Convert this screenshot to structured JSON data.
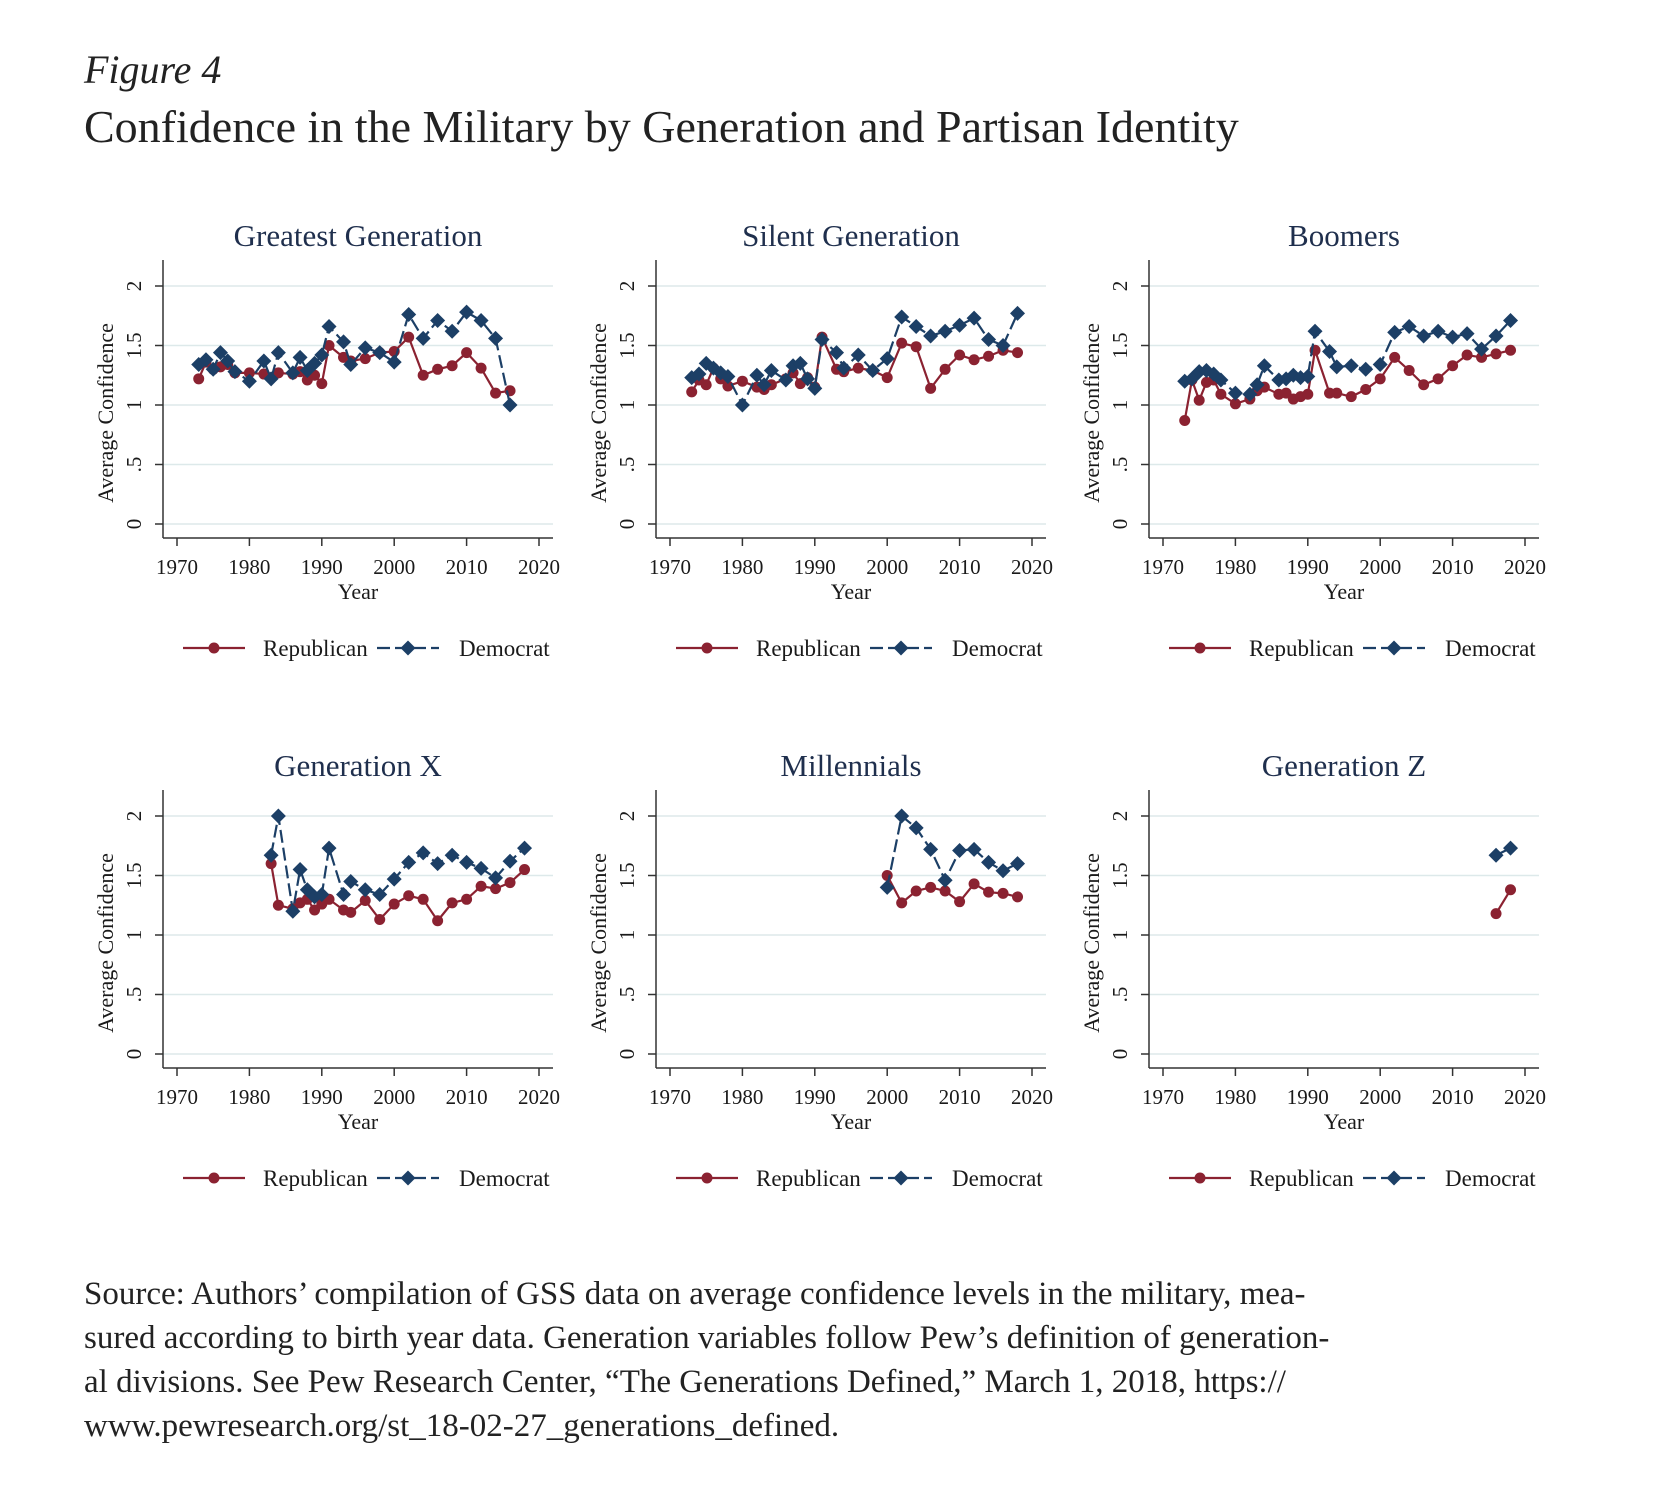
{
  "figure_label": "Figure 4",
  "figure_title": "Confidence in the Military by Generation and Partisan Identity",
  "source_text": "Source: Authors’ compilation of GSS data on average confidence levels in the military, mea-\nsured according to birth year data. Generation variables follow Pew’s definition of generation-\nal divisions. See Pew Research Center, “The Generations Defined,” March 1, 2018, https://\nwww.pewresearch.org/st_18-02-27_generations_defined.",
  "colors": {
    "republican": "#8b2231",
    "democrat": "#1c3f66",
    "grid": "#dde9ea",
    "axis": "#333333"
  },
  "chart_data": [
    {
      "type": "line",
      "title": "Greatest Generation",
      "xlabel": "Year",
      "ylabel": "Average Confidence",
      "xlim": [
        1970,
        2020
      ],
      "ylim": [
        0,
        2
      ],
      "xticks": [
        "1970",
        "1980",
        "1990",
        "2000",
        "2010",
        "2020"
      ],
      "yticks": [
        "0",
        ".5",
        "1",
        "1.5",
        "2"
      ],
      "grid": true,
      "legend": "bottom",
      "series": [
        {
          "name": "Republican",
          "x": [
            1973,
            1974,
            1975,
            1976,
            1977,
            1978,
            1980,
            1982,
            1983,
            1984,
            1986,
            1987,
            1988,
            1989,
            1990,
            1991,
            1993,
            1994,
            1996,
            1998,
            2000,
            2002,
            2004,
            2006,
            2008,
            2010,
            2012,
            2014,
            2016
          ],
          "y": [
            1.22,
            1.36,
            1.3,
            1.32,
            1.34,
            1.27,
            1.27,
            1.26,
            1.23,
            1.27,
            1.26,
            1.28,
            1.21,
            1.25,
            1.18,
            1.5,
            1.4,
            1.37,
            1.39,
            1.44,
            1.45,
            1.57,
            1.25,
            1.3,
            1.33,
            1.44,
            1.31,
            1.1,
            1.12
          ]
        },
        {
          "name": "Democrat",
          "x": [
            1973,
            1974,
            1975,
            1976,
            1977,
            1978,
            1980,
            1982,
            1983,
            1984,
            1986,
            1987,
            1988,
            1989,
            1990,
            1991,
            1993,
            1994,
            1996,
            1998,
            2000,
            2002,
            2004,
            2006,
            2008,
            2010,
            2012,
            2014,
            2016
          ],
          "y": [
            1.34,
            1.38,
            1.3,
            1.44,
            1.37,
            1.28,
            1.2,
            1.37,
            1.22,
            1.44,
            1.27,
            1.4,
            1.29,
            1.35,
            1.42,
            1.66,
            1.53,
            1.34,
            1.48,
            1.44,
            1.36,
            1.76,
            1.56,
            1.71,
            1.62,
            1.78,
            1.71,
            1.56,
            1.0
          ]
        }
      ]
    },
    {
      "type": "line",
      "title": "Silent Generation",
      "xlabel": "Year",
      "ylabel": "Average Confidence",
      "xlim": [
        1970,
        2020
      ],
      "ylim": [
        0,
        2
      ],
      "xticks": [
        "1970",
        "1980",
        "1990",
        "2000",
        "2010",
        "2020"
      ],
      "yticks": [
        "0",
        ".5",
        "1",
        "1.5",
        "2"
      ],
      "grid": true,
      "legend": "bottom",
      "series": [
        {
          "name": "Republican",
          "x": [
            1973,
            1974,
            1975,
            1976,
            1977,
            1978,
            1980,
            1982,
            1983,
            1984,
            1986,
            1987,
            1988,
            1989,
            1990,
            1991,
            1993,
            1994,
            1996,
            1998,
            2000,
            2002,
            2004,
            2006,
            2008,
            2010,
            2012,
            2014,
            2016,
            2018
          ],
          "y": [
            1.11,
            1.21,
            1.17,
            1.31,
            1.22,
            1.16,
            1.2,
            1.15,
            1.13,
            1.17,
            1.22,
            1.27,
            1.18,
            1.23,
            1.15,
            1.57,
            1.3,
            1.28,
            1.31,
            1.29,
            1.23,
            1.52,
            1.49,
            1.14,
            1.3,
            1.42,
            1.38,
            1.41,
            1.46,
            1.44
          ]
        },
        {
          "name": "Democrat",
          "x": [
            1973,
            1974,
            1975,
            1976,
            1977,
            1978,
            1980,
            1982,
            1983,
            1984,
            1986,
            1987,
            1988,
            1989,
            1990,
            1991,
            1993,
            1994,
            1996,
            1998,
            2000,
            2002,
            2004,
            2006,
            2008,
            2010,
            2012,
            2014,
            2016,
            2018
          ],
          "y": [
            1.23,
            1.26,
            1.35,
            1.31,
            1.27,
            1.24,
            1.0,
            1.25,
            1.17,
            1.29,
            1.21,
            1.33,
            1.35,
            1.22,
            1.14,
            1.55,
            1.44,
            1.31,
            1.42,
            1.29,
            1.39,
            1.74,
            1.66,
            1.58,
            1.62,
            1.67,
            1.73,
            1.55,
            1.5,
            1.77
          ]
        }
      ]
    },
    {
      "type": "line",
      "title": "Boomers",
      "xlabel": "Year",
      "ylabel": "Average Confidence",
      "xlim": [
        1970,
        2020
      ],
      "ylim": [
        0,
        2
      ],
      "xticks": [
        "1970",
        "1980",
        "1990",
        "2000",
        "2010",
        "2020"
      ],
      "yticks": [
        "0",
        ".5",
        "1",
        "1.5",
        "2"
      ],
      "grid": true,
      "legend": "bottom",
      "series": [
        {
          "name": "Republican",
          "x": [
            1973,
            1974,
            1975,
            1976,
            1977,
            1978,
            1980,
            1982,
            1983,
            1984,
            1986,
            1987,
            1988,
            1989,
            1990,
            1991,
            1993,
            1994,
            1996,
            1998,
            2000,
            2002,
            2004,
            2006,
            2008,
            2010,
            2012,
            2014,
            2016,
            2018
          ],
          "y": [
            0.87,
            1.21,
            1.04,
            1.19,
            1.21,
            1.09,
            1.01,
            1.05,
            1.12,
            1.15,
            1.09,
            1.1,
            1.05,
            1.07,
            1.09,
            1.46,
            1.1,
            1.1,
            1.07,
            1.13,
            1.22,
            1.4,
            1.29,
            1.17,
            1.22,
            1.33,
            1.42,
            1.4,
            1.43,
            1.46
          ]
        },
        {
          "name": "Democrat",
          "x": [
            1973,
            1974,
            1975,
            1976,
            1977,
            1978,
            1980,
            1982,
            1983,
            1984,
            1986,
            1987,
            1988,
            1989,
            1990,
            1991,
            1993,
            1994,
            1996,
            1998,
            2000,
            2002,
            2004,
            2006,
            2008,
            2010,
            2012,
            2014,
            2016,
            2018
          ],
          "y": [
            1.2,
            1.22,
            1.28,
            1.29,
            1.26,
            1.21,
            1.1,
            1.09,
            1.17,
            1.33,
            1.21,
            1.22,
            1.25,
            1.23,
            1.24,
            1.62,
            1.45,
            1.32,
            1.33,
            1.3,
            1.34,
            1.61,
            1.66,
            1.58,
            1.62,
            1.57,
            1.6,
            1.47,
            1.58,
            1.71
          ]
        }
      ]
    },
    {
      "type": "line",
      "title": "Generation X",
      "xlabel": "Year",
      "ylabel": "Average Confidence",
      "xlim": [
        1970,
        2020
      ],
      "ylim": [
        0,
        2
      ],
      "xticks": [
        "1970",
        "1980",
        "1990",
        "2000",
        "2010",
        "2020"
      ],
      "yticks": [
        "0",
        ".5",
        "1",
        "1.5",
        "2"
      ],
      "grid": true,
      "legend": "bottom",
      "series": [
        {
          "name": "Republican",
          "x": [
            1983,
            1984,
            1986,
            1987,
            1988,
            1989,
            1990,
            1991,
            1993,
            1994,
            1996,
            1998,
            2000,
            2002,
            2004,
            2006,
            2008,
            2010,
            2012,
            2014,
            2016,
            2018
          ],
          "y": [
            1.6,
            1.25,
            1.22,
            1.27,
            1.3,
            1.21,
            1.26,
            1.3,
            1.21,
            1.19,
            1.29,
            1.13,
            1.26,
            1.33,
            1.3,
            1.12,
            1.27,
            1.3,
            1.41,
            1.39,
            1.44,
            1.55
          ]
        },
        {
          "name": "Democrat",
          "x": [
            1983,
            1984,
            1986,
            1987,
            1988,
            1989,
            1990,
            1991,
            1993,
            1994,
            1996,
            1998,
            2000,
            2002,
            2004,
            2006,
            2008,
            2010,
            2012,
            2014,
            2016,
            2018
          ],
          "y": [
            1.67,
            2.0,
            1.2,
            1.55,
            1.38,
            1.32,
            1.34,
            1.73,
            1.34,
            1.45,
            1.38,
            1.34,
            1.47,
            1.61,
            1.69,
            1.6,
            1.67,
            1.61,
            1.56,
            1.48,
            1.62,
            1.73
          ]
        }
      ]
    },
    {
      "type": "line",
      "title": "Millennials",
      "xlabel": "Year",
      "ylabel": "Average Confidence",
      "xlim": [
        1970,
        2020
      ],
      "ylim": [
        0,
        2
      ],
      "xticks": [
        "1970",
        "1980",
        "1990",
        "2000",
        "2010",
        "2020"
      ],
      "yticks": [
        "0",
        ".5",
        "1",
        "1.5",
        "2"
      ],
      "grid": true,
      "legend": "bottom",
      "series": [
        {
          "name": "Republican",
          "x": [
            2000,
            2002,
            2004,
            2006,
            2008,
            2010,
            2012,
            2014,
            2016,
            2018
          ],
          "y": [
            1.5,
            1.27,
            1.37,
            1.4,
            1.37,
            1.28,
            1.43,
            1.36,
            1.35,
            1.32
          ]
        },
        {
          "name": "Democrat",
          "x": [
            2000,
            2002,
            2004,
            2006,
            2008,
            2010,
            2012,
            2014,
            2016,
            2018
          ],
          "y": [
            1.4,
            2.0,
            1.9,
            1.72,
            1.46,
            1.71,
            1.72,
            1.61,
            1.54,
            1.6
          ]
        }
      ]
    },
    {
      "type": "line",
      "title": "Generation Z",
      "xlabel": "Year",
      "ylabel": "Average Confidence",
      "xlim": [
        1970,
        2020
      ],
      "ylim": [
        0,
        2
      ],
      "xticks": [
        "1970",
        "1980",
        "1990",
        "2000",
        "2010",
        "2020"
      ],
      "yticks": [
        "0",
        ".5",
        "1",
        "1.5",
        "2"
      ],
      "grid": true,
      "legend": "bottom",
      "series": [
        {
          "name": "Republican",
          "x": [
            2016,
            2018
          ],
          "y": [
            1.18,
            1.38
          ]
        },
        {
          "name": "Democrat",
          "x": [
            2016,
            2018
          ],
          "y": [
            1.67,
            1.73
          ]
        }
      ]
    }
  ]
}
